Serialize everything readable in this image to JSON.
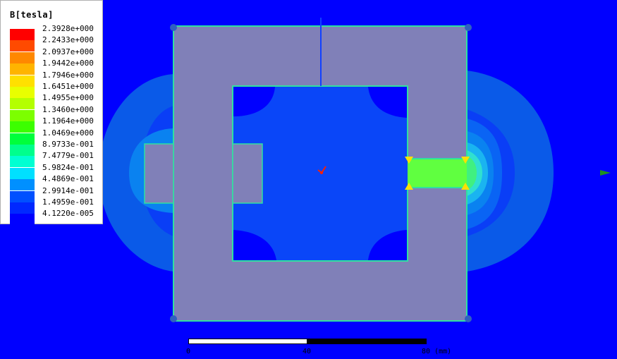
{
  "legend": {
    "title": "B[tesla]",
    "entries": [
      {
        "value": "2.3928e+000",
        "color": "#ff0000"
      },
      {
        "value": "2.2433e+000",
        "color": "#ff4a00"
      },
      {
        "value": "2.0937e+000",
        "color": "#ff8800"
      },
      {
        "value": "1.9442e+000",
        "color": "#ffb400"
      },
      {
        "value": "1.7946e+000",
        "color": "#ffe000"
      },
      {
        "value": "1.6451e+000",
        "color": "#e8ff00"
      },
      {
        "value": "1.4955e+000",
        "color": "#b4ff00"
      },
      {
        "value": "1.3460e+000",
        "color": "#7cff00"
      },
      {
        "value": "1.1964e+000",
        "color": "#3cff00"
      },
      {
        "value": "1.0469e+000",
        "color": "#00ff3c"
      },
      {
        "value": "8.9733e-001",
        "color": "#00ff8c"
      },
      {
        "value": "7.4779e-001",
        "color": "#00ffd2"
      },
      {
        "value": "5.9824e-001",
        "color": "#00e0ff"
      },
      {
        "value": "4.4869e-001",
        "color": "#0090ff"
      },
      {
        "value": "2.9914e-001",
        "color": "#0050ff"
      },
      {
        "value": "1.4959e-001",
        "color": "#0028ff"
      },
      {
        "value": "4.1220e-005",
        "color": "#0000ff"
      }
    ]
  },
  "scale": {
    "label_0": "0",
    "label_mid": "40",
    "label_end": "80 (mm)"
  },
  "colors": {
    "background": "#0000ff",
    "core": "#8080b8",
    "core_outline": "#30e0a0",
    "halo_light": "#0a64f0",
    "halo_mid": "#0a3cf8",
    "halo_outer": "#0a82f0"
  }
}
